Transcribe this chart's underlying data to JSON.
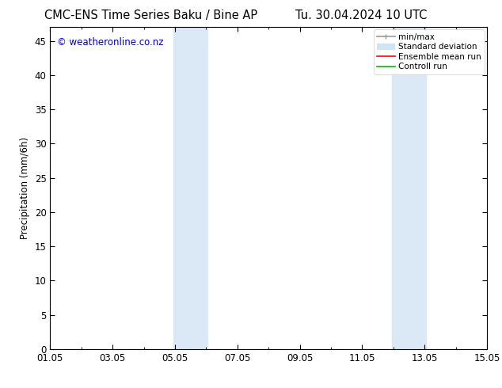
{
  "title_left": "CMC-ENS Time Series Baku / Bine AP",
  "title_right": "Tu. 30.04.2024 10 UTC",
  "ylabel": "Precipitation (mm/6h)",
  "watermark": "© weatheronline.co.nz",
  "ylim": [
    0,
    47
  ],
  "yticks": [
    0,
    5,
    10,
    15,
    20,
    25,
    30,
    35,
    40,
    45
  ],
  "xtick_labels": [
    "01.05",
    "03.05",
    "05.05",
    "07.05",
    "09.05",
    "11.05",
    "13.05",
    "15.05"
  ],
  "xtick_positions": [
    0,
    2,
    4,
    6,
    8,
    10,
    12,
    14
  ],
  "xlim": [
    0,
    14
  ],
  "shaded_regions": [
    {
      "xstart": 3.95,
      "xend": 5.05,
      "color": "#dbe8f5"
    },
    {
      "xstart": 10.95,
      "xend": 12.05,
      "color": "#dbe8f5"
    }
  ],
  "legend_entries": [
    {
      "label": "min/max",
      "color": "#999999",
      "lw": 1.2
    },
    {
      "label": "Standard deviation",
      "color": "#d0e4f0",
      "lw": 6
    },
    {
      "label": "Ensemble mean run",
      "color": "#ff0000",
      "lw": 1.2
    },
    {
      "label": "Controll run",
      "color": "#00bb00",
      "lw": 1.2
    }
  ],
  "bg_color": "#ffffff",
  "title_fontsize": 10.5,
  "axis_fontsize": 8.5,
  "watermark_color": "#0000bb",
  "watermark_fontsize": 8.5,
  "legend_fontsize": 7.5
}
